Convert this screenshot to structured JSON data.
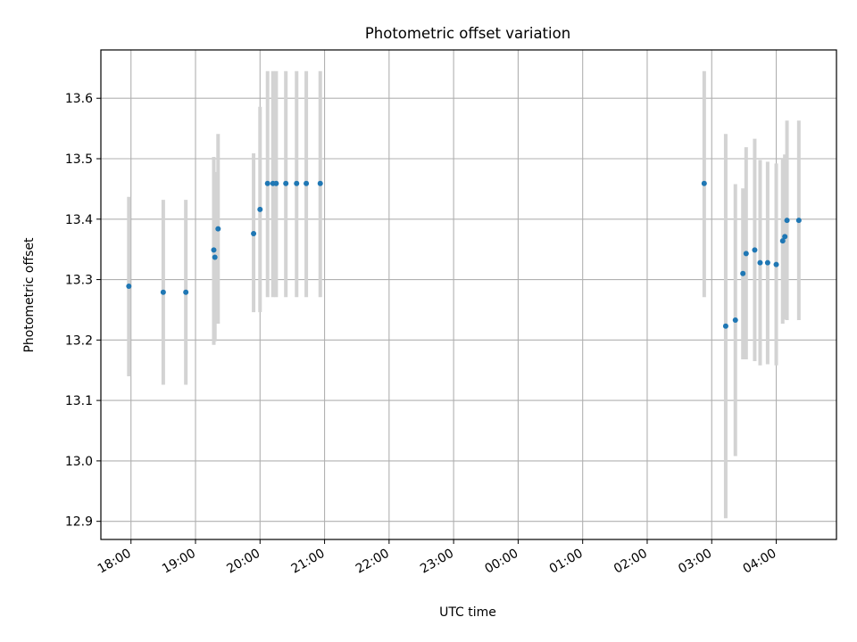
{
  "chart_data": {
    "type": "scatter",
    "title": "Photometric offset variation",
    "xlabel": "UTC time",
    "ylabel": "Photometric offset",
    "x_axis_kind": "time",
    "xlim": [
      "17:32",
      "04:56 next day"
    ],
    "ylim": [
      12.87,
      13.68
    ],
    "x_ticks": [
      "18:00",
      "19:00",
      "20:00",
      "21:00",
      "22:00",
      "23:00",
      "00:00",
      "01:00",
      "02:00",
      "03:00",
      "04:00"
    ],
    "y_ticks": [
      "12.9",
      "13.0",
      "13.1",
      "13.2",
      "13.3",
      "13.4",
      "13.5",
      "13.6"
    ],
    "grid": true,
    "colors": {
      "point": "#1f77b4",
      "errorbar": "#d3d3d3",
      "grid": "#b0b0b0"
    },
    "points": [
      {
        "x": "17:58",
        "y": 13.289,
        "err_low": 13.14,
        "err_high": 13.437
      },
      {
        "x": "18:30",
        "y": 13.279,
        "err_low": 13.126,
        "err_high": 13.432
      },
      {
        "x": "18:51",
        "y": 13.279,
        "err_low": 13.126,
        "err_high": 13.432
      },
      {
        "x": "19:17",
        "y": 13.349,
        "err_low": 13.192,
        "err_high": 13.503
      },
      {
        "x": "19:18",
        "y": 13.337,
        "err_low": 13.198,
        "err_high": 13.478
      },
      {
        "x": "19:21",
        "y": 13.384,
        "err_low": 13.227,
        "err_high": 13.541
      },
      {
        "x": "19:54",
        "y": 13.376,
        "err_low": 13.246,
        "err_high": 13.509
      },
      {
        "x": "20:00",
        "y": 13.416,
        "err_low": 13.246,
        "err_high": 13.586
      },
      {
        "x": "20:07",
        "y": 13.459,
        "err_low": 13.271,
        "err_high": 13.645
      },
      {
        "x": "20:12",
        "y": 13.459,
        "err_low": 13.271,
        "err_high": 13.645
      },
      {
        "x": "20:15",
        "y": 13.459,
        "err_low": 13.271,
        "err_high": 13.645
      },
      {
        "x": "20:24",
        "y": 13.459,
        "err_low": 13.271,
        "err_high": 13.645
      },
      {
        "x": "20:34",
        "y": 13.459,
        "err_low": 13.271,
        "err_high": 13.645
      },
      {
        "x": "20:43",
        "y": 13.459,
        "err_low": 13.271,
        "err_high": 13.645
      },
      {
        "x": "20:56",
        "y": 13.459,
        "err_low": 13.271,
        "err_high": 13.645
      },
      {
        "x": "02:53",
        "y": 13.459,
        "err_low": 13.271,
        "err_high": 13.645
      },
      {
        "x": "03:13",
        "y": 13.223,
        "err_low": 12.905,
        "err_high": 13.541
      },
      {
        "x": "03:22",
        "y": 13.233,
        "err_low": 13.008,
        "err_high": 13.458
      },
      {
        "x": "03:29",
        "y": 13.31,
        "err_low": 13.168,
        "err_high": 13.451
      },
      {
        "x": "03:32",
        "y": 13.343,
        "err_low": 13.168,
        "err_high": 13.519
      },
      {
        "x": "03:40",
        "y": 13.349,
        "err_low": 13.165,
        "err_high": 13.533
      },
      {
        "x": "03:45",
        "y": 13.328,
        "err_low": 13.158,
        "err_high": 13.498
      },
      {
        "x": "03:52",
        "y": 13.328,
        "err_low": 13.16,
        "err_high": 13.495
      },
      {
        "x": "04:00",
        "y": 13.325,
        "err_low": 13.158,
        "err_high": 13.492
      },
      {
        "x": "04:06",
        "y": 13.364,
        "err_low": 13.227,
        "err_high": 13.5
      },
      {
        "x": "04:08",
        "y": 13.371,
        "err_low": 13.234,
        "err_high": 13.507
      },
      {
        "x": "04:10",
        "y": 13.398,
        "err_low": 13.233,
        "err_high": 13.563
      },
      {
        "x": "04:21",
        "y": 13.398,
        "err_low": 13.233,
        "err_high": 13.563
      }
    ]
  }
}
